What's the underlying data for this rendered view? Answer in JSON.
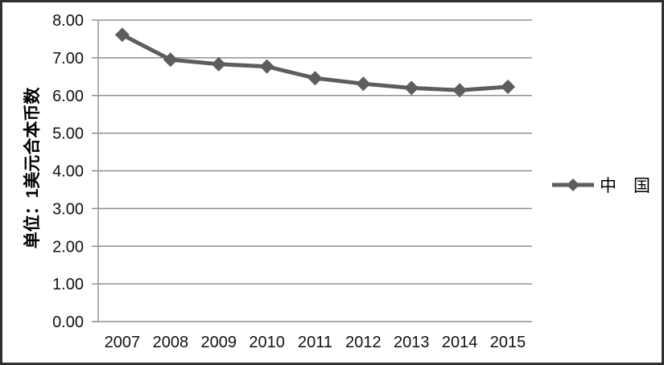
{
  "chart_data": {
    "type": "line",
    "title": "",
    "xlabel": "",
    "ylabel": "单位：1美元合本币数",
    "x": [
      "2007",
      "2008",
      "2009",
      "2010",
      "2011",
      "2012",
      "2013",
      "2014",
      "2015"
    ],
    "series": [
      {
        "name": "中　国",
        "values": [
          7.61,
          6.95,
          6.83,
          6.77,
          6.46,
          6.31,
          6.2,
          6.14,
          6.23
        ],
        "marker": "diamond"
      }
    ],
    "ylim": [
      0,
      8
    ],
    "ytick_step": 1,
    "ytick_decimals": 2,
    "grid": true,
    "legend_position": "right",
    "colors": {
      "series": "#5d5d5d",
      "grid": "#8f8f8f",
      "axis": "#8f8f8f",
      "text": "#111111",
      "background": "#ffffff",
      "frame_border": "#303030"
    }
  }
}
